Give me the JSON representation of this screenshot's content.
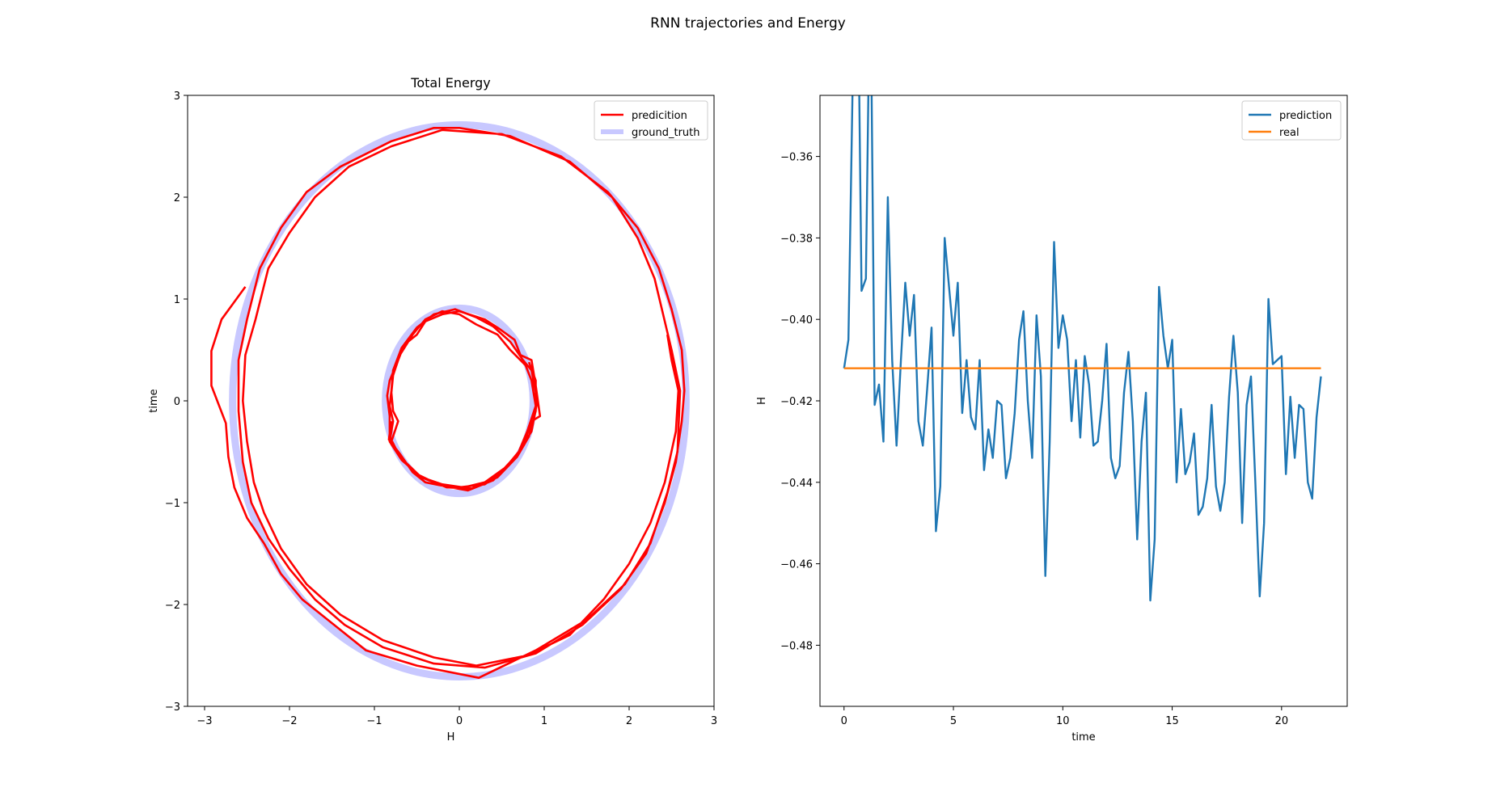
{
  "figure": {
    "suptitle": "RNN trajectories and Energy"
  },
  "chart_data": [
    {
      "type": "line",
      "title": "Total Energy",
      "xlabel": "H",
      "ylabel": "time",
      "xlim": [
        -3.2,
        3.0
      ],
      "ylim": [
        -3,
        3
      ],
      "xticks": [
        -3,
        -2,
        -1,
        0,
        1,
        2,
        3
      ],
      "yticks": [
        -3,
        -2,
        -1,
        0,
        1,
        2,
        3
      ],
      "grid": false,
      "legend_position": "upper right",
      "legend": [
        "predicition",
        "ground_truth"
      ],
      "colors": {
        "prediction": "#ff0000",
        "ground_truth": "#c8c8ff"
      },
      "series": [
        {
          "name": "ground_truth",
          "curves": [
            {
              "cx": 0.0,
              "cy": 0.0,
              "rx": 2.67,
              "ry": 2.71
            },
            {
              "cx": 0.0,
              "cy": 0.0,
              "rx": 0.87,
              "ry": 0.91
            }
          ]
        },
        {
          "name": "predicition",
          "paths": [
            [
              [
                -2.52,
                1.12
              ],
              [
                -2.8,
                0.8
              ],
              [
                -2.92,
                0.49
              ],
              [
                -2.92,
                0.15
              ],
              [
                -2.75,
                -0.22
              ],
              [
                -2.72,
                -0.55
              ],
              [
                -2.65,
                -0.85
              ],
              [
                -2.5,
                -1.15
              ],
              [
                -2.3,
                -1.4
              ],
              [
                -2.1,
                -1.7
              ],
              [
                -1.85,
                -1.95
              ],
              [
                -1.55,
                -2.15
              ],
              [
                -1.1,
                -2.45
              ],
              [
                -0.5,
                -2.6
              ],
              [
                0.23,
                -2.72
              ],
              [
                0.9,
                -2.45
              ],
              [
                1.5,
                -2.15
              ],
              [
                1.95,
                -1.8
              ],
              [
                2.25,
                -1.4
              ],
              [
                2.45,
                -0.9
              ],
              [
                2.57,
                -0.5
              ],
              [
                2.6,
                0.1
              ],
              [
                2.5,
                0.5
              ],
              [
                2.3,
                1.2
              ],
              [
                2.1,
                1.6
              ],
              [
                1.8,
                2.0
              ],
              [
                1.3,
                2.35
              ],
              [
                0.6,
                2.6
              ],
              [
                0.0,
                2.68
              ],
              [
                -0.3,
                2.68
              ],
              [
                -0.8,
                2.55
              ],
              [
                -1.4,
                2.3
              ],
              [
                -1.8,
                2.05
              ],
              [
                -2.1,
                1.7
              ],
              [
                -2.35,
                1.3
              ],
              [
                -2.5,
                0.8
              ],
              [
                -2.6,
                0.4
              ],
              [
                -2.6,
                -0.1
              ],
              [
                -2.55,
                -0.6
              ],
              [
                -2.45,
                -1.0
              ],
              [
                -2.25,
                -1.35
              ],
              [
                -2.0,
                -1.65
              ],
              [
                -1.7,
                -1.95
              ],
              [
                -1.35,
                -2.2
              ],
              [
                -0.9,
                -2.42
              ],
              [
                -0.3,
                -2.58
              ],
              [
                0.3,
                -2.62
              ],
              [
                0.9,
                -2.48
              ],
              [
                1.45,
                -2.2
              ],
              [
                1.9,
                -1.85
              ],
              [
                2.2,
                -1.5
              ],
              [
                2.42,
                -1.0
              ],
              [
                2.55,
                -0.6
              ],
              [
                2.62,
                -0.2
              ],
              [
                2.65,
                0.1
              ],
              [
                2.62,
                0.5
              ],
              [
                2.5,
                0.9
              ],
              [
                2.35,
                1.3
              ],
              [
                2.1,
                1.7
              ],
              [
                1.75,
                2.05
              ],
              [
                1.2,
                2.4
              ],
              [
                0.5,
                2.62
              ],
              [
                -0.2,
                2.66
              ],
              [
                -0.8,
                2.5
              ],
              [
                -1.3,
                2.3
              ],
              [
                -1.7,
                2.0
              ],
              [
                -2.0,
                1.65
              ],
              [
                -2.25,
                1.3
              ],
              [
                -2.4,
                0.8
              ],
              [
                -2.52,
                0.45
              ],
              [
                -2.55,
                0.0
              ],
              [
                -2.5,
                -0.4
              ],
              [
                -2.42,
                -0.8
              ],
              [
                -2.3,
                -1.1
              ],
              [
                -2.1,
                -1.45
              ],
              [
                -1.8,
                -1.8
              ],
              [
                -1.4,
                -2.1
              ],
              [
                -0.9,
                -2.35
              ],
              [
                -0.3,
                -2.52
              ],
              [
                0.2,
                -2.6
              ],
              [
                0.8,
                -2.5
              ],
              [
                1.3,
                -2.3
              ],
              [
                1.7,
                -1.95
              ],
              [
                2.0,
                -1.6
              ],
              [
                2.25,
                -1.2
              ],
              [
                2.42,
                -0.8
              ],
              [
                2.55,
                -0.3
              ],
              [
                2.58,
                0.1
              ],
              [
                2.5,
                0.4
              ],
              [
                2.45,
                0.65
              ]
            ],
            [
              [
                -0.8,
                -0.2
              ],
              [
                -0.83,
                -0.38
              ],
              [
                -0.7,
                -0.52
              ],
              [
                -0.55,
                -0.7
              ],
              [
                -0.4,
                -0.8
              ],
              [
                -0.1,
                -0.85
              ],
              [
                0.1,
                -0.88
              ],
              [
                0.4,
                -0.78
              ],
              [
                0.6,
                -0.6
              ],
              [
                0.75,
                -0.45
              ],
              [
                0.85,
                -0.2
              ],
              [
                0.95,
                -0.15
              ],
              [
                0.9,
                0.15
              ],
              [
                0.85,
                0.4
              ],
              [
                0.72,
                0.45
              ],
              [
                0.65,
                0.6
              ],
              [
                0.45,
                0.72
              ],
              [
                0.3,
                0.8
              ],
              [
                0.0,
                0.88
              ],
              [
                -0.2,
                0.85
              ],
              [
                -0.4,
                0.78
              ],
              [
                -0.5,
                0.65
              ],
              [
                -0.65,
                0.55
              ],
              [
                -0.72,
                0.4
              ],
              [
                -0.82,
                0.2
              ],
              [
                -0.85,
                0.05
              ],
              [
                -0.82,
                -0.15
              ],
              [
                -0.82,
                -0.35
              ],
              [
                -0.7,
                -0.55
              ],
              [
                -0.45,
                -0.75
              ],
              [
                -0.2,
                -0.82
              ],
              [
                0.05,
                -0.85
              ],
              [
                0.3,
                -0.8
              ],
              [
                0.55,
                -0.65
              ],
              [
                0.7,
                -0.5
              ],
              [
                0.8,
                -0.3
              ],
              [
                0.9,
                -0.05
              ],
              [
                0.85,
                0.2
              ],
              [
                0.78,
                0.35
              ],
              [
                0.6,
                0.5
              ],
              [
                0.45,
                0.65
              ],
              [
                0.2,
                0.75
              ],
              [
                0.0,
                0.85
              ],
              [
                -0.2,
                0.88
              ],
              [
                -0.4,
                0.8
              ],
              [
                -0.55,
                0.65
              ],
              [
                -0.7,
                0.45
              ],
              [
                -0.78,
                0.25
              ],
              [
                -0.8,
                0.08
              ],
              [
                -0.78,
                -0.1
              ],
              [
                -0.72,
                -0.2
              ],
              [
                -0.8,
                -0.4
              ],
              [
                -0.7,
                -0.55
              ],
              [
                -0.5,
                -0.72
              ],
              [
                -0.25,
                -0.82
              ],
              [
                0.0,
                -0.85
              ],
              [
                0.3,
                -0.82
              ],
              [
                0.5,
                -0.7
              ],
              [
                0.7,
                -0.5
              ],
              [
                0.85,
                -0.3
              ],
              [
                0.92,
                0.0
              ],
              [
                0.85,
                0.3
              ],
              [
                0.75,
                0.4
              ],
              [
                0.6,
                0.58
              ],
              [
                0.4,
                0.73
              ],
              [
                0.2,
                0.82
              ],
              [
                -0.05,
                0.9
              ],
              [
                -0.3,
                0.85
              ],
              [
                -0.5,
                0.72
              ],
              [
                -0.68,
                0.52
              ],
              [
                -0.78,
                0.3
              ],
              [
                -0.8,
                0.1
              ],
              [
                -0.82,
                -0.05
              ],
              [
                -0.78,
                -0.2
              ],
              [
                -0.82,
                -0.4
              ],
              [
                -0.68,
                -0.58
              ],
              [
                -0.45,
                -0.75
              ],
              [
                -0.15,
                -0.85
              ],
              [
                0.15,
                -0.86
              ],
              [
                0.45,
                -0.75
              ],
              [
                0.68,
                -0.55
              ],
              [
                0.82,
                -0.35
              ],
              [
                0.9,
                -0.1
              ],
              [
                0.9,
                0.2
              ],
              [
                0.82,
                0.38
              ]
            ]
          ]
        }
      ]
    },
    {
      "type": "line",
      "title": "",
      "xlabel": "time",
      "ylabel": "H",
      "xlim": [
        -1.1,
        23.0
      ],
      "ylim": [
        -0.495,
        -0.345
      ],
      "xticks": [
        0,
        5,
        10,
        15,
        20
      ],
      "yticks": [
        -0.48,
        -0.46,
        -0.44,
        -0.42,
        -0.4,
        -0.38,
        -0.36
      ],
      "ytick_labels": [
        "−0.48",
        "−0.46",
        "−0.44",
        "−0.42",
        "−0.40",
        "−0.38",
        "−0.36"
      ],
      "grid": false,
      "legend_position": "upper right",
      "legend": [
        "prediction",
        "real"
      ],
      "colors": {
        "prediction": "#1f77b4",
        "real": "#ff7f0e"
      },
      "series": [
        {
          "name": "prediction",
          "x": [
            0.0,
            0.2,
            0.4,
            0.6,
            0.8,
            1.0,
            1.2,
            1.4,
            1.6,
            1.8,
            2.0,
            2.2,
            2.4,
            2.6,
            2.8,
            3.0,
            3.2,
            3.4,
            3.6,
            3.8,
            4.0,
            4.2,
            4.4,
            4.6,
            4.8,
            5.0,
            5.2,
            5.4,
            5.6,
            5.8,
            6.0,
            6.2,
            6.4,
            6.6,
            6.8,
            7.0,
            7.2,
            7.4,
            7.6,
            7.8,
            8.0,
            8.2,
            8.4,
            8.6,
            8.8,
            9.0,
            9.2,
            9.4,
            9.6,
            9.8,
            10.0,
            10.2,
            10.4,
            10.6,
            10.8,
            11.0,
            11.2,
            11.4,
            11.6,
            11.8,
            12.0,
            12.2,
            12.4,
            12.6,
            12.8,
            13.0,
            13.2,
            13.4,
            13.6,
            13.8,
            14.0,
            14.2,
            14.4,
            14.6,
            14.8,
            15.0,
            15.2,
            15.4,
            15.6,
            15.8,
            16.0,
            16.2,
            16.4,
            16.6,
            16.8,
            17.0,
            17.2,
            17.4,
            17.6,
            17.8,
            18.0,
            18.2,
            18.4,
            18.6,
            18.8,
            19.0,
            19.2,
            19.4,
            19.6,
            19.8,
            20.0,
            20.2,
            20.4,
            20.6,
            20.8,
            21.0,
            21.2,
            21.4,
            21.6,
            21.8
          ],
          "y": [
            -0.412,
            -0.405,
            -0.34,
            -0.3,
            -0.393,
            -0.39,
            -0.31,
            -0.421,
            -0.416,
            -0.43,
            -0.37,
            -0.41,
            -0.431,
            -0.41,
            -0.391,
            -0.404,
            -0.394,
            -0.425,
            -0.431,
            -0.417,
            -0.402,
            -0.452,
            -0.441,
            -0.38,
            -0.392,
            -0.404,
            -0.391,
            -0.423,
            -0.41,
            -0.424,
            -0.427,
            -0.41,
            -0.437,
            -0.427,
            -0.434,
            -0.42,
            -0.421,
            -0.439,
            -0.434,
            -0.423,
            -0.405,
            -0.398,
            -0.42,
            -0.434,
            -0.399,
            -0.414,
            -0.463,
            -0.43,
            -0.381,
            -0.407,
            -0.399,
            -0.405,
            -0.425,
            -0.41,
            -0.429,
            -0.409,
            -0.416,
            -0.431,
            -0.43,
            -0.42,
            -0.406,
            -0.434,
            -0.439,
            -0.436,
            -0.418,
            -0.408,
            -0.425,
            -0.454,
            -0.43,
            -0.418,
            -0.469,
            -0.454,
            -0.392,
            -0.404,
            -0.412,
            -0.405,
            -0.44,
            -0.422,
            -0.438,
            -0.435,
            -0.428,
            -0.448,
            -0.446,
            -0.439,
            -0.421,
            -0.441,
            -0.447,
            -0.44,
            -0.419,
            -0.404,
            -0.418,
            -0.45,
            -0.421,
            -0.414,
            -0.44,
            -0.468,
            -0.45,
            -0.395,
            -0.411,
            -0.41,
            -0.409,
            -0.438,
            -0.419,
            -0.434,
            -0.421,
            -0.422,
            -0.44,
            -0.444,
            -0.424,
            -0.414
          ]
        },
        {
          "name": "real",
          "x": [
            0.0,
            21.8
          ],
          "y": [
            -0.412,
            -0.412
          ]
        }
      ]
    }
  ]
}
